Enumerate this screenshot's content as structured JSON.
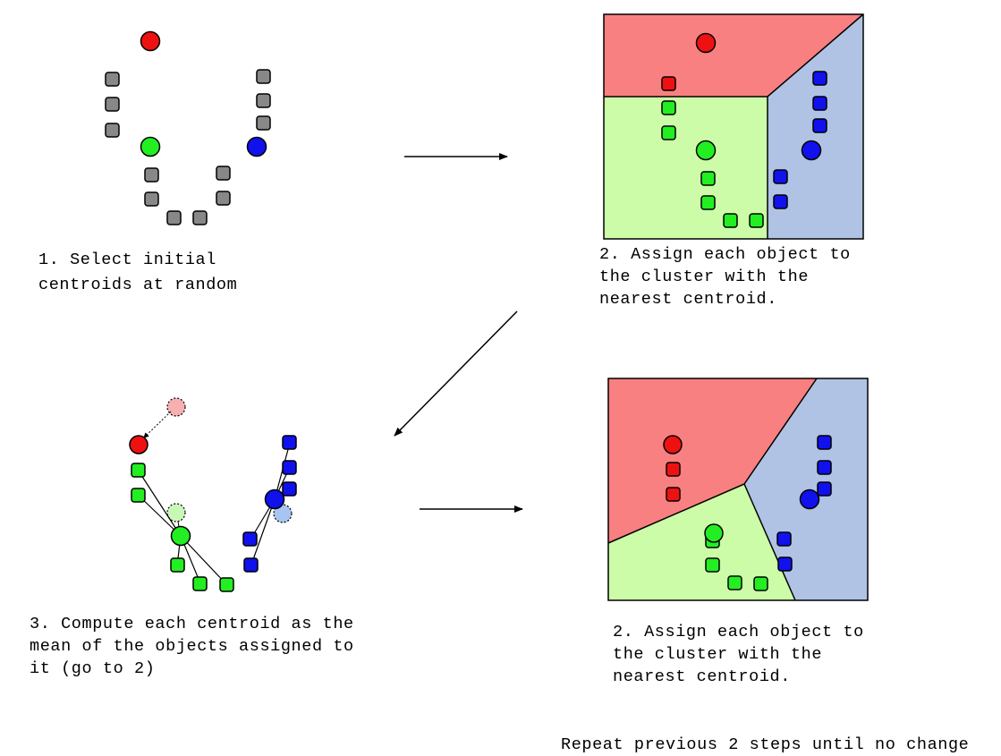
{
  "colors": {
    "red": "#ee1111",
    "green": "#22ee22",
    "blue": "#1111ee",
    "gray": "#888888",
    "region_red": "#f98080",
    "region_green": "#ccfca8",
    "region_blue": "#b0c3e4"
  },
  "captions": {
    "step1": "1. Select initial\ncentroids at random",
    "step2": "2. Assign each object to\nthe cluster with the\nnearest centroid.",
    "step3": "3. Compute each centroid as the\nmean of the objects assigned to\nit (go to 2)",
    "step4": "2. Assign each object to\nthe cluster with the\nnearest centroid.",
    "footer": "Repeat previous 2 steps until no change"
  }
}
